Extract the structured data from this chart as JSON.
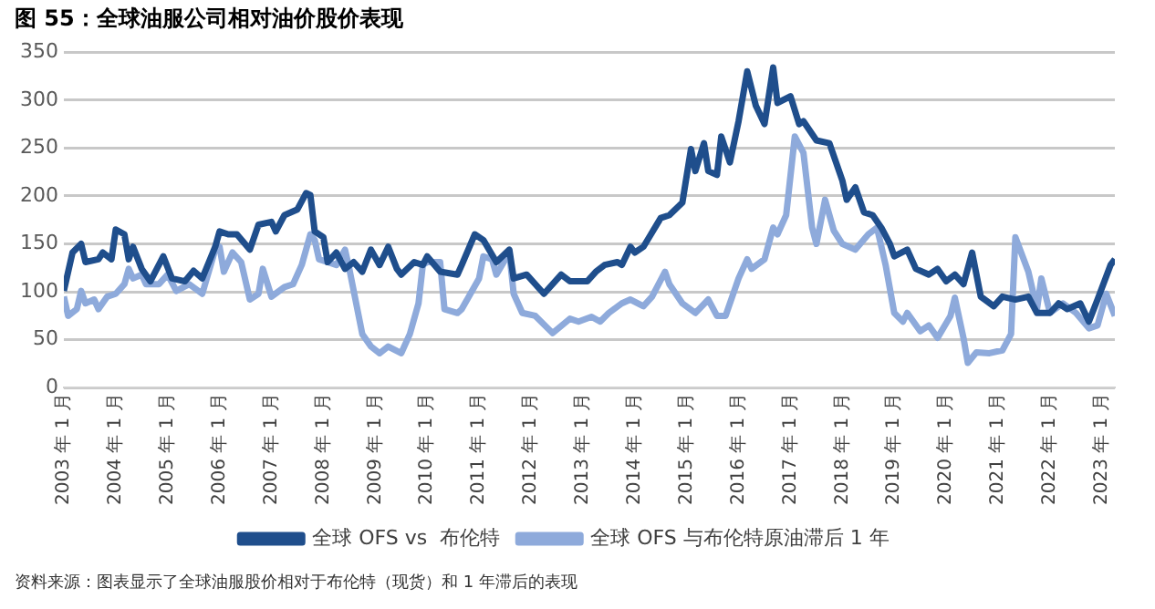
{
  "chart_data": {
    "type": "line",
    "title": "图 55：全球油服公司相对油价股价表现",
    "annotations": [
      "资料来源：图表显示了全球油服股价相对于布伦特（现货）和 1 年滞后的表现"
    ],
    "xlim": [
      "2003-01",
      "2023-04"
    ],
    "ylim": [
      0,
      350
    ],
    "yticks": [
      0,
      50,
      100,
      150,
      200,
      250,
      300,
      350
    ],
    "xticks": [
      {
        "value": "2003-01",
        "label": "2003 年 1 月"
      },
      {
        "value": "2004-01",
        "label": "2004 年 1 月"
      },
      {
        "value": "2005-01",
        "label": "2005 年 1 月"
      },
      {
        "value": "2006-01",
        "label": "2006 年 1 月"
      },
      {
        "value": "2007-01",
        "label": "2007 年 1 月"
      },
      {
        "value": "2008-01",
        "label": "2008 年 1 月"
      },
      {
        "value": "2009-01",
        "label": "2009 年 1 月"
      },
      {
        "value": "2010-01",
        "label": "2010 年 1 月"
      },
      {
        "value": "2011-01",
        "label": "2011 年 1 月"
      },
      {
        "value": "2012-01",
        "label": "2012 年 1 月"
      },
      {
        "value": "2013-01",
        "label": "2013 年 1 月"
      },
      {
        "value": "2014-01",
        "label": "2014 年 1 月"
      },
      {
        "value": "2015-01",
        "label": "2015 年 1 月"
      },
      {
        "value": "2016-01",
        "label": "2016 年 1 月"
      },
      {
        "value": "2017-01",
        "label": "2017 年 1 月"
      },
      {
        "value": "2018-01",
        "label": "2018 年 1 月"
      },
      {
        "value": "2019-01",
        "label": "2019 年 1 月"
      },
      {
        "value": "2020-01",
        "label": "2020 年 1 月"
      },
      {
        "value": "2021-01",
        "label": "2021 年 1 月"
      },
      {
        "value": "2022-01",
        "label": "2022 年 1 月"
      },
      {
        "value": "2023-01",
        "label": "2023 年 1 月"
      }
    ],
    "grid": "y",
    "legend": "bottom",
    "marker": "none",
    "line_style": "solid",
    "series": [
      {
        "name": "全球 OFS vs  布伦特",
        "color": "#1f4e8c",
        "x": [
          "2003-01",
          "2003-03",
          "2003-05",
          "2003-06",
          "2003-09",
          "2003-10",
          "2003-12",
          "2004-01",
          "2004-03",
          "2004-04",
          "2004-05",
          "2004-07",
          "2004-09",
          "2004-12",
          "2005-02",
          "2005-05",
          "2005-07",
          "2005-09",
          "2005-12",
          "2006-01",
          "2006-03",
          "2006-05",
          "2006-08",
          "2006-10",
          "2007-01",
          "2007-02",
          "2007-04",
          "2007-07",
          "2007-09",
          "2007-10",
          "2007-11",
          "2008-01",
          "2008-02",
          "2008-04",
          "2008-06",
          "2008-08",
          "2008-10",
          "2008-12",
          "2009-02",
          "2009-04",
          "2009-06",
          "2009-07",
          "2009-10",
          "2009-12",
          "2010-01",
          "2010-04",
          "2010-08",
          "2010-09",
          "2010-12",
          "2011-02",
          "2011-05",
          "2011-08",
          "2011-09",
          "2011-12",
          "2012-04",
          "2012-08",
          "2012-10",
          "2013-02",
          "2013-04",
          "2013-06",
          "2013-09",
          "2013-10",
          "2013-12",
          "2014-01",
          "2014-03",
          "2014-07",
          "2014-09",
          "2014-12",
          "2015-02",
          "2015-03",
          "2015-05",
          "2015-06",
          "2015-08",
          "2015-09",
          "2015-11",
          "2016-01",
          "2016-03",
          "2016-05",
          "2016-07",
          "2016-09",
          "2016-10",
          "2017-01",
          "2017-03",
          "2017-04",
          "2017-07",
          "2017-10",
          "2018-01",
          "2018-02",
          "2018-04",
          "2018-06",
          "2018-08",
          "2018-10",
          "2018-12",
          "2019-01",
          "2019-04",
          "2019-06",
          "2019-09",
          "2019-11",
          "2020-01",
          "2020-03",
          "2020-05",
          "2020-07",
          "2020-09",
          "2020-12",
          "2021-02",
          "2021-05",
          "2021-08",
          "2021-10",
          "2022-01",
          "2022-03",
          "2022-05",
          "2022-08",
          "2022-10",
          "2022-12",
          "2023-03",
          "2023-04"
        ],
        "values": [
          101,
          141,
          150,
          131,
          134,
          141,
          134,
          165,
          160,
          134,
          147,
          124,
          111,
          137,
          114,
          111,
          122,
          114,
          147,
          163,
          160,
          160,
          144,
          170,
          173,
          163,
          180,
          186,
          203,
          201,
          163,
          157,
          131,
          141,
          124,
          131,
          121,
          144,
          128,
          147,
          124,
          118,
          131,
          128,
          137,
          121,
          118,
          128,
          160,
          154,
          131,
          144,
          114,
          118,
          98,
          118,
          111,
          111,
          121,
          128,
          131,
          128,
          147,
          141,
          147,
          177,
          180,
          193,
          249,
          226,
          255,
          226,
          222,
          262,
          235,
          278,
          330,
          294,
          275,
          334,
          297,
          304,
          275,
          278,
          258,
          255,
          216,
          196,
          209,
          183,
          180,
          167,
          150,
          137,
          144,
          124,
          118,
          124,
          111,
          118,
          108,
          141,
          95,
          85,
          95,
          92,
          95,
          78,
          78,
          88,
          82,
          88,
          69,
          92,
          128,
          134
        ]
      },
      {
        "name": "全球 OFS 与布伦特原油滞后 1 年",
        "color": "#8eaadb",
        "x": [
          "2003-01",
          "2003-02",
          "2003-04",
          "2003-05",
          "2003-06",
          "2003-08",
          "2003-09",
          "2003-11",
          "2004-01",
          "2004-03",
          "2004-04",
          "2004-05",
          "2004-07",
          "2004-08",
          "2004-11",
          "2005-01",
          "2005-03",
          "2005-06",
          "2005-09",
          "2005-12",
          "2006-01",
          "2006-02",
          "2006-04",
          "2006-06",
          "2006-08",
          "2006-10",
          "2006-11",
          "2007-01",
          "2007-04",
          "2007-06",
          "2007-08",
          "2007-10",
          "2007-11",
          "2007-12",
          "2008-02",
          "2008-04",
          "2008-06",
          "2008-07",
          "2008-10",
          "2008-12",
          "2009-02",
          "2009-04",
          "2009-07",
          "2009-09",
          "2009-11",
          "2009-12",
          "2010-01",
          "2010-04",
          "2010-05",
          "2010-08",
          "2010-09",
          "2010-11",
          "2011-01",
          "2011-02",
          "2011-04",
          "2011-05",
          "2011-08",
          "2011-09",
          "2011-11",
          "2012-02",
          "2012-06",
          "2012-10",
          "2012-12",
          "2013-03",
          "2013-05",
          "2013-07",
          "2013-10",
          "2013-12",
          "2014-03",
          "2014-05",
          "2014-08",
          "2014-09",
          "2014-12",
          "2015-03",
          "2015-06",
          "2015-08",
          "2015-10",
          "2016-01",
          "2016-03",
          "2016-04",
          "2016-07",
          "2016-09",
          "2016-10",
          "2016-12",
          "2017-02",
          "2017-04",
          "2017-06",
          "2017-07",
          "2017-09",
          "2017-11",
          "2018-01",
          "2018-04",
          "2018-07",
          "2018-09",
          "2018-11",
          "2019-01",
          "2019-03",
          "2019-04",
          "2019-07",
          "2019-09",
          "2019-11",
          "2020-02",
          "2020-03",
          "2020-05",
          "2020-06",
          "2020-08",
          "2020-11",
          "2021-02",
          "2021-04",
          "2021-05",
          "2021-08",
          "2021-10",
          "2021-11",
          "2022-01",
          "2022-04",
          "2022-07",
          "2022-10",
          "2022-12",
          "2023-02",
          "2023-04"
        ],
        "values": [
          95,
          75,
          82,
          101,
          88,
          92,
          82,
          95,
          98,
          108,
          124,
          114,
          118,
          108,
          108,
          118,
          101,
          108,
          98,
          144,
          147,
          121,
          141,
          131,
          92,
          98,
          124,
          95,
          105,
          108,
          128,
          160,
          154,
          134,
          131,
          128,
          144,
          124,
          56,
          43,
          36,
          43,
          36,
          56,
          88,
          128,
          131,
          131,
          82,
          78,
          82,
          98,
          114,
          137,
          134,
          118,
          141,
          98,
          78,
          75,
          57,
          72,
          69,
          74,
          69,
          78,
          88,
          92,
          85,
          95,
          121,
          108,
          88,
          78,
          92,
          75,
          75,
          114,
          134,
          124,
          134,
          167,
          160,
          180,
          262,
          245,
          167,
          150,
          196,
          164,
          150,
          144,
          160,
          167,
          128,
          78,
          69,
          78,
          59,
          65,
          52,
          75,
          94,
          52,
          26,
          37,
          36,
          39,
          56,
          157,
          121,
          82,
          114,
          78,
          88,
          78,
          62,
          65,
          98,
          75
        ]
      }
    ]
  }
}
